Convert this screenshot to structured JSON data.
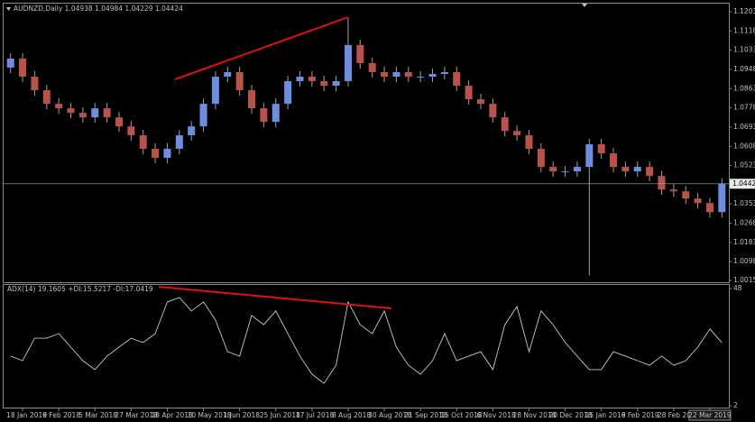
{
  "chart_data": [
    {
      "type": "candlestick",
      "title": "AUDNZD,Daily 1.04938 1.04984 1.04229 1.04424",
      "categories": [
        null,
        "18 Jan 2018",
        null,
        null,
        "9 Feb 2018",
        null,
        null,
        "5 Mar 2018",
        null,
        null,
        "27 Mar 2018",
        null,
        null,
        "18 Apr 2018",
        null,
        null,
        "10 May 2018",
        null,
        null,
        "1 Jun 2018",
        null,
        null,
        "25 Jun 2018",
        null,
        null,
        "17 Jul 2018",
        null,
        null,
        "8 Aug 2018",
        null,
        null,
        "30 Aug 2018",
        null,
        null,
        "21 Sep 2018",
        null,
        null,
        "15 Oct 2018",
        null,
        null,
        "6 Nov 2018",
        null,
        null,
        "28 Nov 2018",
        null,
        null,
        "20 Dec 2018",
        null,
        null,
        "15 Jan 2019",
        null,
        null,
        "6 Feb 2019",
        null,
        null,
        "28 Feb 2019",
        null,
        null,
        "22 Mar 2019",
        null
      ],
      "open": [
        1.0956,
        1.0996,
        1.0916,
        1.0856,
        1.0796,
        1.0776,
        1.0756,
        1.0736,
        1.0776,
        1.0736,
        1.0696,
        1.0657,
        1.0597,
        1.0557,
        1.0597,
        1.0657,
        1.0696,
        1.0796,
        1.0916,
        1.0936,
        1.0856,
        1.0776,
        1.0716,
        1.0796,
        1.0896,
        1.0916,
        1.0896,
        1.0876,
        1.0896,
        1.1056,
        1.0976,
        1.0936,
        1.0916,
        1.0936,
        1.0916,
        1.0916,
        1.0928,
        1.0936,
        1.0876,
        1.0816,
        1.0796,
        1.0736,
        1.0676,
        1.0657,
        1.0597,
        1.0517,
        1.0497,
        1.0497,
        1.0517,
        1.0617,
        1.0577,
        1.0517,
        1.0497,
        1.0517,
        1.0477,
        1.0417,
        1.0409,
        1.0377,
        1.0357,
        1.0317
      ],
      "high": [
        1.102,
        1.102,
        1.094,
        1.088,
        1.082,
        1.08,
        1.078,
        1.08,
        1.08,
        1.076,
        1.072,
        1.0681,
        1.0621,
        1.0621,
        1.0681,
        1.072,
        1.082,
        1.094,
        1.096,
        1.096,
        1.088,
        1.08,
        1.082,
        1.092,
        1.094,
        1.094,
        1.092,
        1.092,
        1.1175,
        1.108,
        1.1,
        1.096,
        1.096,
        1.096,
        1.094,
        1.0952,
        1.096,
        1.096,
        1.09,
        1.084,
        1.082,
        1.076,
        1.07,
        1.0681,
        1.0621,
        1.0541,
        1.0521,
        1.0541,
        1.0641,
        1.0641,
        1.0601,
        1.0541,
        1.0541,
        1.0541,
        1.0501,
        1.0441,
        1.0433,
        1.0401,
        1.0381,
        1.0466
      ],
      "low": [
        1.0932,
        1.0892,
        1.0832,
        1.0772,
        1.0752,
        1.0732,
        1.0712,
        1.0712,
        1.0712,
        1.0672,
        1.0633,
        1.0573,
        1.0533,
        1.0533,
        1.0573,
        1.0633,
        1.0672,
        1.0772,
        1.0892,
        1.0832,
        1.0752,
        1.0692,
        1.0692,
        1.0772,
        1.0872,
        1.0872,
        1.0852,
        1.0852,
        1.0872,
        1.0952,
        1.0912,
        1.0892,
        1.0892,
        1.0892,
        1.0892,
        1.0892,
        1.0904,
        1.0852,
        1.0792,
        1.0772,
        1.0712,
        1.0652,
        1.0633,
        1.0573,
        1.0493,
        1.0473,
        1.0473,
        1.0473,
        1.0038,
        1.0553,
        1.0493,
        1.0473,
        1.0473,
        1.0453,
        1.0393,
        1.0385,
        1.0353,
        1.0333,
        1.0293,
        1.0293
      ],
      "close": [
        1.0996,
        1.0916,
        1.0856,
        1.0796,
        1.0776,
        1.0756,
        1.0736,
        1.0776,
        1.0736,
        1.0696,
        1.0657,
        1.0597,
        1.0557,
        1.0597,
        1.0657,
        1.0696,
        1.0796,
        1.0916,
        1.0936,
        1.0856,
        1.0776,
        1.0716,
        1.0796,
        1.0896,
        1.0916,
        1.0896,
        1.0876,
        1.0896,
        1.1056,
        1.0976,
        1.0936,
        1.0916,
        1.0936,
        1.0916,
        1.0916,
        1.0928,
        1.0936,
        1.0876,
        1.0816,
        1.0796,
        1.0736,
        1.0676,
        1.0657,
        1.0597,
        1.0517,
        1.0497,
        1.0497,
        1.0517,
        1.0617,
        1.0577,
        1.0517,
        1.0497,
        1.0517,
        1.0477,
        1.0417,
        1.0409,
        1.0377,
        1.0357,
        1.0317,
        1.0442
      ],
      "up_color": "#6d8ee0",
      "down_color": "#b8524a",
      "ylim": [
        1.0011,
        1.1235
      ],
      "yticks": [
        {
          "value": 1.1203,
          "label": "1.12030"
        },
        {
          "value": 1.1118,
          "label": "1.11180"
        },
        {
          "value": 1.1033,
          "label": "1.10330"
        },
        {
          "value": 1.0948,
          "label": "1.09480"
        },
        {
          "value": 1.0863,
          "label": "1.08630"
        },
        {
          "value": 1.0778,
          "label": "1.07780"
        },
        {
          "value": 1.0693,
          "label": "1.06930"
        },
        {
          "value": 1.0608,
          "label": "1.06080"
        },
        {
          "value": 1.0523,
          "label": "1.05230"
        },
        {
          "value": 1.0353,
          "label": "1.03530"
        },
        {
          "value": 1.0268,
          "label": "1.02680"
        },
        {
          "value": 1.0183,
          "label": "1.01830"
        },
        {
          "value": 1.0098,
          "label": "1.00980"
        },
        {
          "value": 1.00155,
          "label": "1.00155"
        }
      ],
      "last_price": 1.04424
    },
    {
      "type": "line",
      "title": "ADX(14) 19.1605 +DI:15.5217 -DI:17.0419",
      "series": [
        {
          "name": "ADX(14)",
          "color": "#c8c8c8",
          "values": [
            21.5,
            19.7,
            28.5,
            28.5,
            30.3,
            25.0,
            19.7,
            16.2,
            21.5,
            25.0,
            28.5,
            26.8,
            30.3,
            42.7,
            44.5,
            39.2,
            42.7,
            35.6,
            23.2,
            21.5,
            37.4,
            33.8,
            39.2,
            30.3,
            21.5,
            14.4,
            10.8,
            17.9,
            42.7,
            33.8,
            30.3,
            39.2,
            25.0,
            17.9,
            14.4,
            19.7,
            30.3,
            19.7,
            21.5,
            23.2,
            16.2,
            33.8,
            40.9,
            23.2,
            39.2,
            33.8,
            26.8,
            21.5,
            16.2,
            16.2,
            23.2,
            21.5,
            19.7,
            17.9,
            21.5,
            17.9,
            19.7,
            25.0,
            32.1,
            26.8
          ]
        }
      ],
      "ylim": [
        1.3,
        49.4
      ],
      "yticks": [
        48,
        2
      ]
    }
  ]
}
